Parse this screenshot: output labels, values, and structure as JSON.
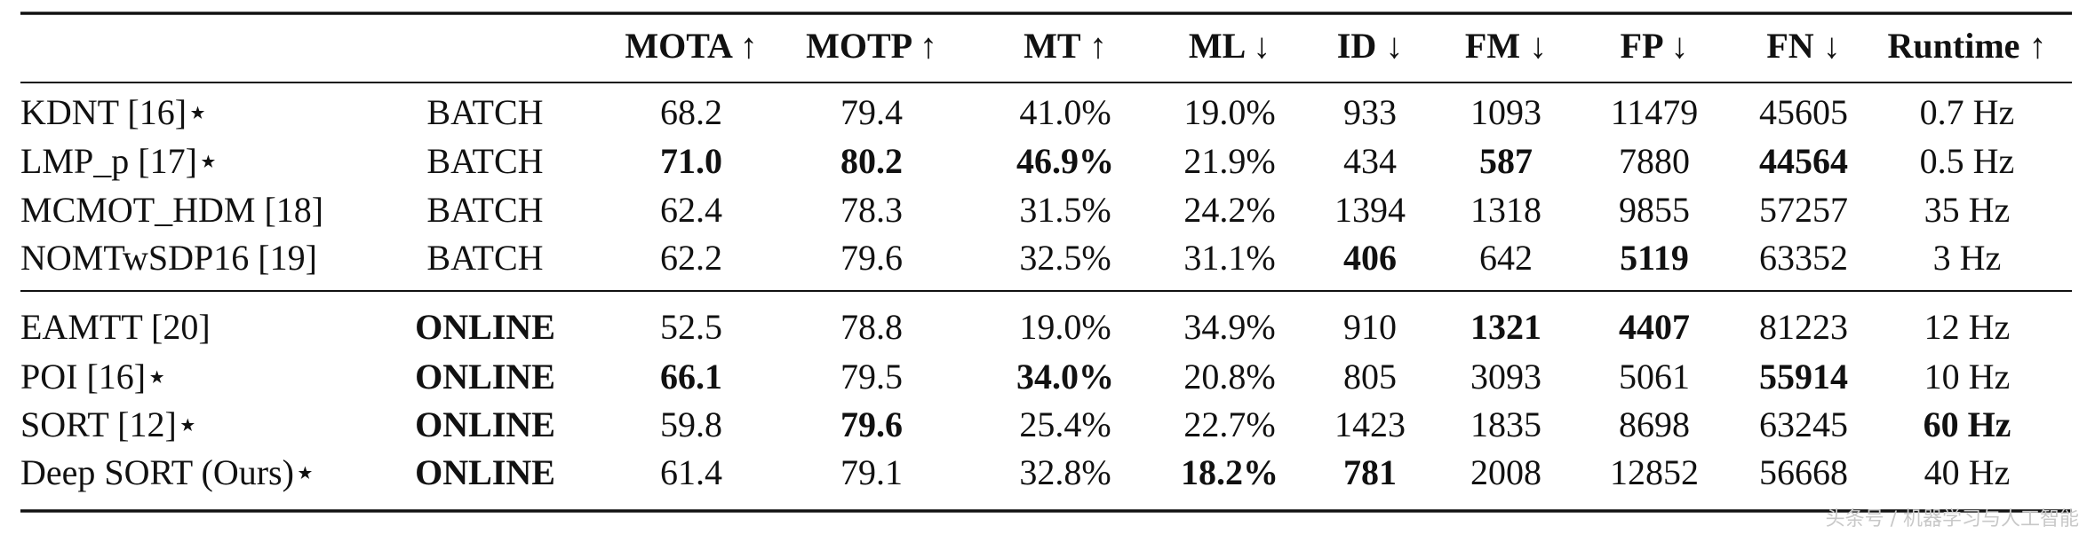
{
  "table": {
    "columns": [
      "MOTA ↑",
      "MOTP ↑",
      "MT ↑",
      "ML ↓",
      "ID ↓",
      "FM ↓",
      "FP ↓",
      "FN ↓",
      "Runtime ↑"
    ],
    "groups": [
      [
        {
          "cells": [
            "KDNT [16]⋆",
            "BATCH",
            "68.2",
            "79.4",
            "41.0%",
            "19.0%",
            "933",
            "1093",
            "11479",
            "45605",
            "0.7 Hz"
          ]
        },
        {
          "cells": [
            "LMP_p [17]⋆",
            "BATCH",
            "71.0",
            "80.2",
            "46.9%",
            "21.9%",
            "434",
            "587",
            "7880",
            "44564",
            "0.5 Hz"
          ],
          "bold": [
            2,
            3,
            4,
            7,
            9
          ]
        },
        {
          "cells": [
            "MCMOT_HDM [18]",
            "BATCH",
            "62.4",
            "78.3",
            "31.5%",
            "24.2%",
            "1394",
            "1318",
            "9855",
            "57257",
            "35 Hz"
          ]
        },
        {
          "cells": [
            "NOMTwSDP16 [19]",
            "BATCH",
            "62.2",
            "79.6",
            "32.5%",
            "31.1%",
            "406",
            "642",
            "5119",
            "63352",
            "3 Hz"
          ],
          "bold": [
            6,
            8
          ]
        }
      ],
      [
        {
          "cells": [
            "EAMTT [20]",
            "ONLINE",
            "52.5",
            "78.8",
            "19.0%",
            "34.9%",
            "910",
            "1321",
            "4407",
            "81223",
            "12 Hz"
          ],
          "bold": [
            1,
            7,
            8
          ]
        },
        {
          "cells": [
            "POI [16]⋆",
            "ONLINE",
            "66.1",
            "79.5",
            "34.0%",
            "20.8%",
            "805",
            "3093",
            "5061",
            "55914",
            "10 Hz"
          ],
          "bold": [
            1,
            2,
            4,
            9
          ]
        },
        {
          "cells": [
            "SORT [12]⋆",
            "ONLINE",
            "59.8",
            "79.6",
            "25.4%",
            "22.7%",
            "1423",
            "1835",
            "8698",
            "63245",
            "60 Hz"
          ],
          "bold": [
            1,
            3,
            10
          ]
        },
        {
          "cells": [
            "Deep SORT (Ours)⋆",
            "ONLINE",
            "61.4",
            "79.1",
            "32.8%",
            "18.2%",
            "781",
            "2008",
            "12852",
            "56668",
            "40 Hz"
          ],
          "bold": [
            1,
            5,
            6
          ]
        }
      ]
    ]
  },
  "watermark": "头条号 / 机器学习与人工智能"
}
